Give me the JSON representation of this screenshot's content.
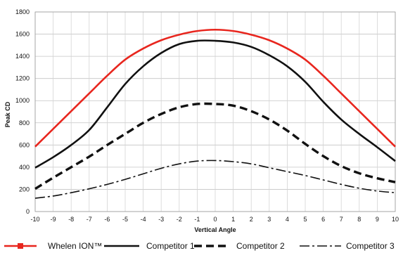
{
  "chart_data": {
    "type": "line",
    "title": "",
    "xlabel": "Vertical Angle",
    "ylabel": "Peak CD",
    "xlim": [
      -10,
      10
    ],
    "ylim": [
      0,
      1800
    ],
    "x_ticks": [
      "-10",
      "-9",
      "-8",
      "-7",
      "-6",
      "-5",
      "-4",
      "-3",
      "-2",
      "-1",
      "0",
      "1",
      "2",
      "3",
      "4",
      "5",
      "6",
      "7",
      "8",
      "9",
      "10"
    ],
    "y_ticks": [
      "0",
      "200",
      "400",
      "600",
      "800",
      "1000",
      "1200",
      "1400",
      "1600",
      "1800"
    ],
    "grid": true,
    "legend_position": "bottom",
    "series": [
      {
        "name": "Whelen ION™",
        "color": "#e8261e",
        "style": "solid",
        "x": [
          -10,
          -9,
          -8,
          -7,
          -6,
          -5,
          -4,
          -3,
          -2,
          -1,
          0,
          1,
          2,
          3,
          4,
          5,
          6,
          7,
          8,
          9,
          10
        ],
        "values": [
          585,
          745,
          905,
          1065,
          1225,
          1370,
          1470,
          1545,
          1595,
          1628,
          1640,
          1628,
          1595,
          1545,
          1470,
          1370,
          1225,
          1065,
          905,
          745,
          585
        ]
      },
      {
        "name": "Competitor 1",
        "color": "#111111",
        "style": "solid",
        "x": [
          -10,
          -9,
          -8,
          -7,
          -6,
          -5,
          -4,
          -3,
          -2,
          -1,
          0,
          1,
          2,
          3,
          4,
          5,
          6,
          7,
          8,
          9,
          10
        ],
        "values": [
          395,
          490,
          600,
          735,
          940,
          1150,
          1310,
          1430,
          1510,
          1540,
          1540,
          1525,
          1485,
          1410,
          1310,
          1170,
          990,
          830,
          700,
          580,
          455
        ]
      },
      {
        "name": "Competitor 2",
        "color": "#111111",
        "style": "dashed",
        "x": [
          -10,
          -9,
          -8,
          -7,
          -6,
          -5,
          -4,
          -3,
          -2,
          -1,
          0,
          1,
          2,
          3,
          4,
          5,
          6,
          7,
          8,
          9,
          10
        ],
        "values": [
          205,
          305,
          400,
          495,
          600,
          700,
          800,
          880,
          940,
          970,
          970,
          955,
          905,
          830,
          730,
          610,
          500,
          410,
          345,
          300,
          265
        ]
      },
      {
        "name": "Competitor 3",
        "color": "#111111",
        "style": "dashdot",
        "x": [
          -10,
          -9,
          -8,
          -7,
          -6,
          -5,
          -4,
          -3,
          -2,
          -1,
          0,
          1,
          2,
          3,
          4,
          5,
          6,
          7,
          8,
          9,
          10
        ],
        "values": [
          120,
          140,
          170,
          205,
          245,
          290,
          340,
          390,
          430,
          455,
          460,
          450,
          430,
          395,
          360,
          325,
          285,
          245,
          210,
          185,
          170
        ]
      }
    ]
  }
}
